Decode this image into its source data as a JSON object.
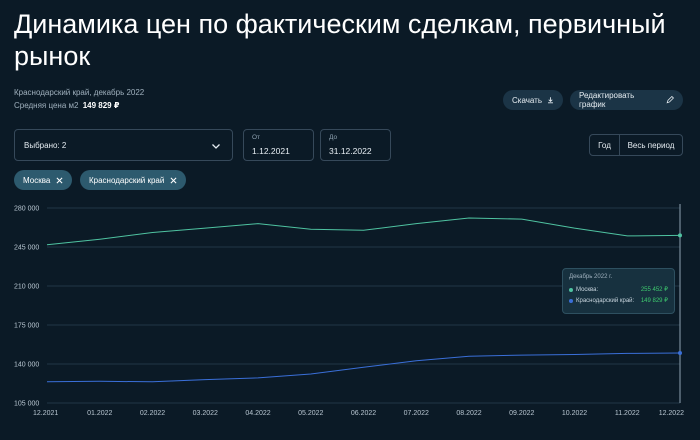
{
  "header": {
    "title": "Динамика цен по фактическим сделкам, первичный рынок",
    "subtitle": "Краснодарский край, декабрь 2022",
    "avg_label": "Средняя цена м2",
    "avg_value": "149 829 ₽"
  },
  "actions": {
    "download_label": "Скачать",
    "edit_label": "Редактировать график"
  },
  "filters": {
    "select_label": "Выбрано: 2",
    "from_label": "От",
    "from_value": "1.12.2021",
    "to_label": "До",
    "to_value": "31.12.2022",
    "period_year": "Год",
    "period_all": "Весь период",
    "chips": [
      "Москва",
      "Краснодарский край"
    ]
  },
  "tooltip": {
    "title": "Декабрь 2022 г.",
    "rows": [
      {
        "name": "Москва:",
        "value": "255 452 ₽",
        "color": "#4fc3a1"
      },
      {
        "name": "Краснодарский край:",
        "value": "149 829 ₽",
        "color": "#3a6fd8"
      }
    ]
  },
  "chart_data": {
    "type": "line",
    "x": [
      "12.2021",
      "01.2022",
      "02.2022",
      "03.2022",
      "04.2022",
      "05.2022",
      "06.2022",
      "07.2022",
      "08.2022",
      "09.2022",
      "10.2022",
      "11.2022",
      "12.2022"
    ],
    "yticks": [
      "280 000",
      "245 000",
      "210 000",
      "175 000",
      "140 000",
      "105 000"
    ],
    "ylim": [
      105000,
      280000
    ],
    "series": [
      {
        "name": "Москва",
        "color": "#4fc3a1",
        "values": [
          247000,
          252000,
          258000,
          262000,
          266000,
          261000,
          260000,
          266000,
          271000,
          270000,
          262000,
          255000,
          255452
        ]
      },
      {
        "name": "Краснодарский край",
        "color": "#3a6fd8",
        "values": [
          124000,
          124500,
          124000,
          126000,
          127500,
          131000,
          137000,
          143000,
          147000,
          148000,
          148500,
          149500,
          149829
        ]
      }
    ]
  }
}
